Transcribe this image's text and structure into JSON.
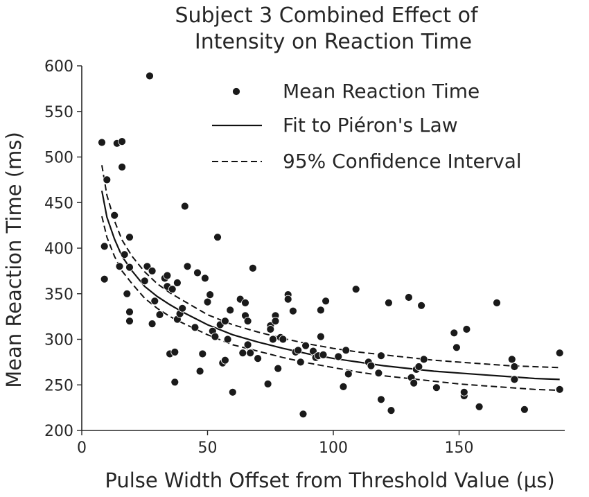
{
  "chart_data": {
    "type": "scatter",
    "title_lines": [
      "Subject 3 Combined Effect of",
      "Intensity on Reaction Time"
    ],
    "xlabel": "Pulse Width Offset from Threshold Value (μs)",
    "ylabel": "Mean Reaction Time (ms)",
    "xlim": [
      0,
      192
    ],
    "ylim": [
      200,
      600
    ],
    "xticks": [
      0,
      50,
      100,
      150
    ],
    "yticks": [
      200,
      250,
      300,
      350,
      400,
      450,
      500,
      550,
      600
    ],
    "grid": false,
    "legend_position": "top-right",
    "legend": {
      "points": "Mean Reaction Time",
      "fit": "Fit to Piéron's Law",
      "ci": "95% Confidence Interval"
    },
    "fit_curve": {
      "name": "Fit to Piéron's Law",
      "x": [
        8,
        10,
        13,
        16,
        20,
        25,
        30,
        35,
        40,
        50,
        60,
        70,
        80,
        90,
        100,
        110,
        120,
        130,
        140,
        150,
        160,
        170,
        180,
        190
      ],
      "y": [
        463,
        434,
        410,
        391,
        375,
        358,
        347,
        338,
        330,
        316,
        305,
        297,
        290,
        284,
        279,
        275,
        271,
        268,
        265,
        263,
        261,
        259,
        257,
        256
      ]
    },
    "ci_upper": {
      "name": "95% Confidence Interval",
      "x": [
        8,
        10,
        13,
        16,
        20,
        25,
        30,
        35,
        40,
        50,
        60,
        70,
        80,
        90,
        100,
        110,
        120,
        130,
        140,
        150,
        160,
        170,
        180,
        190
      ],
      "y": [
        491,
        458,
        430,
        409,
        391,
        374,
        361,
        351,
        343,
        327,
        316,
        308,
        301,
        295,
        290,
        286,
        283,
        280,
        277,
        275,
        273,
        271,
        270,
        269
      ]
    },
    "ci_lower": {
      "name": "95% Confidence Interval",
      "x": [
        8,
        10,
        13,
        16,
        20,
        25,
        30,
        35,
        40,
        50,
        60,
        70,
        80,
        90,
        100,
        110,
        120,
        130,
        140,
        150,
        160,
        170,
        180,
        190
      ],
      "y": [
        435,
        412,
        391,
        375,
        361,
        345,
        334,
        325,
        318,
        305,
        294,
        287,
        280,
        274,
        269,
        264,
        260,
        257,
        254,
        251,
        249,
        247,
        245,
        244
      ]
    },
    "points": [
      {
        "x": 8,
        "y": 516
      },
      {
        "x": 9,
        "y": 402
      },
      {
        "x": 9,
        "y": 366
      },
      {
        "x": 10,
        "y": 475
      },
      {
        "x": 13,
        "y": 436
      },
      {
        "x": 14,
        "y": 515
      },
      {
        "x": 15,
        "y": 380
      },
      {
        "x": 16,
        "y": 489
      },
      {
        "x": 16,
        "y": 517
      },
      {
        "x": 17,
        "y": 393
      },
      {
        "x": 18,
        "y": 350
      },
      {
        "x": 19,
        "y": 412
      },
      {
        "x": 19,
        "y": 379
      },
      {
        "x": 19,
        "y": 330
      },
      {
        "x": 19,
        "y": 320
      },
      {
        "x": 25,
        "y": 364
      },
      {
        "x": 26,
        "y": 380
      },
      {
        "x": 27,
        "y": 589
      },
      {
        "x": 28,
        "y": 375
      },
      {
        "x": 28,
        "y": 317
      },
      {
        "x": 29,
        "y": 342
      },
      {
        "x": 31,
        "y": 327
      },
      {
        "x": 33,
        "y": 367
      },
      {
        "x": 34,
        "y": 370
      },
      {
        "x": 34,
        "y": 358
      },
      {
        "x": 35,
        "y": 284
      },
      {
        "x": 36,
        "y": 355
      },
      {
        "x": 37,
        "y": 253
      },
      {
        "x": 37,
        "y": 286
      },
      {
        "x": 38,
        "y": 362
      },
      {
        "x": 38,
        "y": 322
      },
      {
        "x": 39,
        "y": 328
      },
      {
        "x": 40,
        "y": 334
      },
      {
        "x": 41,
        "y": 446
      },
      {
        "x": 42,
        "y": 380
      },
      {
        "x": 45,
        "y": 313
      },
      {
        "x": 46,
        "y": 373
      },
      {
        "x": 47,
        "y": 265
      },
      {
        "x": 48,
        "y": 284
      },
      {
        "x": 49,
        "y": 367
      },
      {
        "x": 50,
        "y": 341
      },
      {
        "x": 51,
        "y": 349
      },
      {
        "x": 52,
        "y": 309
      },
      {
        "x": 53,
        "y": 303
      },
      {
        "x": 54,
        "y": 412
      },
      {
        "x": 55,
        "y": 316
      },
      {
        "x": 56,
        "y": 274
      },
      {
        "x": 57,
        "y": 277
      },
      {
        "x": 57,
        "y": 320
      },
      {
        "x": 58,
        "y": 300
      },
      {
        "x": 59,
        "y": 332
      },
      {
        "x": 60,
        "y": 242
      },
      {
        "x": 63,
        "y": 344
      },
      {
        "x": 64,
        "y": 285
      },
      {
        "x": 65,
        "y": 340
      },
      {
        "x": 65,
        "y": 326
      },
      {
        "x": 66,
        "y": 320
      },
      {
        "x": 66,
        "y": 294
      },
      {
        "x": 67,
        "y": 285
      },
      {
        "x": 68,
        "y": 378
      },
      {
        "x": 70,
        "y": 279
      },
      {
        "x": 74,
        "y": 251
      },
      {
        "x": 75,
        "y": 315
      },
      {
        "x": 75,
        "y": 311
      },
      {
        "x": 76,
        "y": 300
      },
      {
        "x": 77,
        "y": 326
      },
      {
        "x": 77,
        "y": 320
      },
      {
        "x": 78,
        "y": 268
      },
      {
        "x": 79,
        "y": 302
      },
      {
        "x": 80,
        "y": 300
      },
      {
        "x": 82,
        "y": 349
      },
      {
        "x": 82,
        "y": 344
      },
      {
        "x": 84,
        "y": 331
      },
      {
        "x": 85,
        "y": 286
      },
      {
        "x": 86,
        "y": 288
      },
      {
        "x": 87,
        "y": 275
      },
      {
        "x": 88,
        "y": 218
      },
      {
        "x": 89,
        "y": 293
      },
      {
        "x": 92,
        "y": 287
      },
      {
        "x": 93,
        "y": 280
      },
      {
        "x": 94,
        "y": 282
      },
      {
        "x": 95,
        "y": 332
      },
      {
        "x": 95,
        "y": 303
      },
      {
        "x": 96,
        "y": 283
      },
      {
        "x": 97,
        "y": 342
      },
      {
        "x": 102,
        "y": 281
      },
      {
        "x": 104,
        "y": 248
      },
      {
        "x": 105,
        "y": 288
      },
      {
        "x": 106,
        "y": 262
      },
      {
        "x": 109,
        "y": 355
      },
      {
        "x": 114,
        "y": 275
      },
      {
        "x": 115,
        "y": 271
      },
      {
        "x": 118,
        "y": 263
      },
      {
        "x": 119,
        "y": 234
      },
      {
        "x": 119,
        "y": 282
      },
      {
        "x": 122,
        "y": 340
      },
      {
        "x": 123,
        "y": 222
      },
      {
        "x": 130,
        "y": 346
      },
      {
        "x": 131,
        "y": 258
      },
      {
        "x": 132,
        "y": 252
      },
      {
        "x": 133,
        "y": 267
      },
      {
        "x": 134,
        "y": 270
      },
      {
        "x": 135,
        "y": 337
      },
      {
        "x": 136,
        "y": 278
      },
      {
        "x": 141,
        "y": 247
      },
      {
        "x": 148,
        "y": 307
      },
      {
        "x": 149,
        "y": 291
      },
      {
        "x": 152,
        "y": 238
      },
      {
        "x": 152,
        "y": 242
      },
      {
        "x": 153,
        "y": 311
      },
      {
        "x": 158,
        "y": 226
      },
      {
        "x": 165,
        "y": 340
      },
      {
        "x": 171,
        "y": 278
      },
      {
        "x": 172,
        "y": 270
      },
      {
        "x": 172,
        "y": 256
      },
      {
        "x": 176,
        "y": 223
      },
      {
        "x": 190,
        "y": 285
      },
      {
        "x": 190,
        "y": 245
      }
    ]
  }
}
